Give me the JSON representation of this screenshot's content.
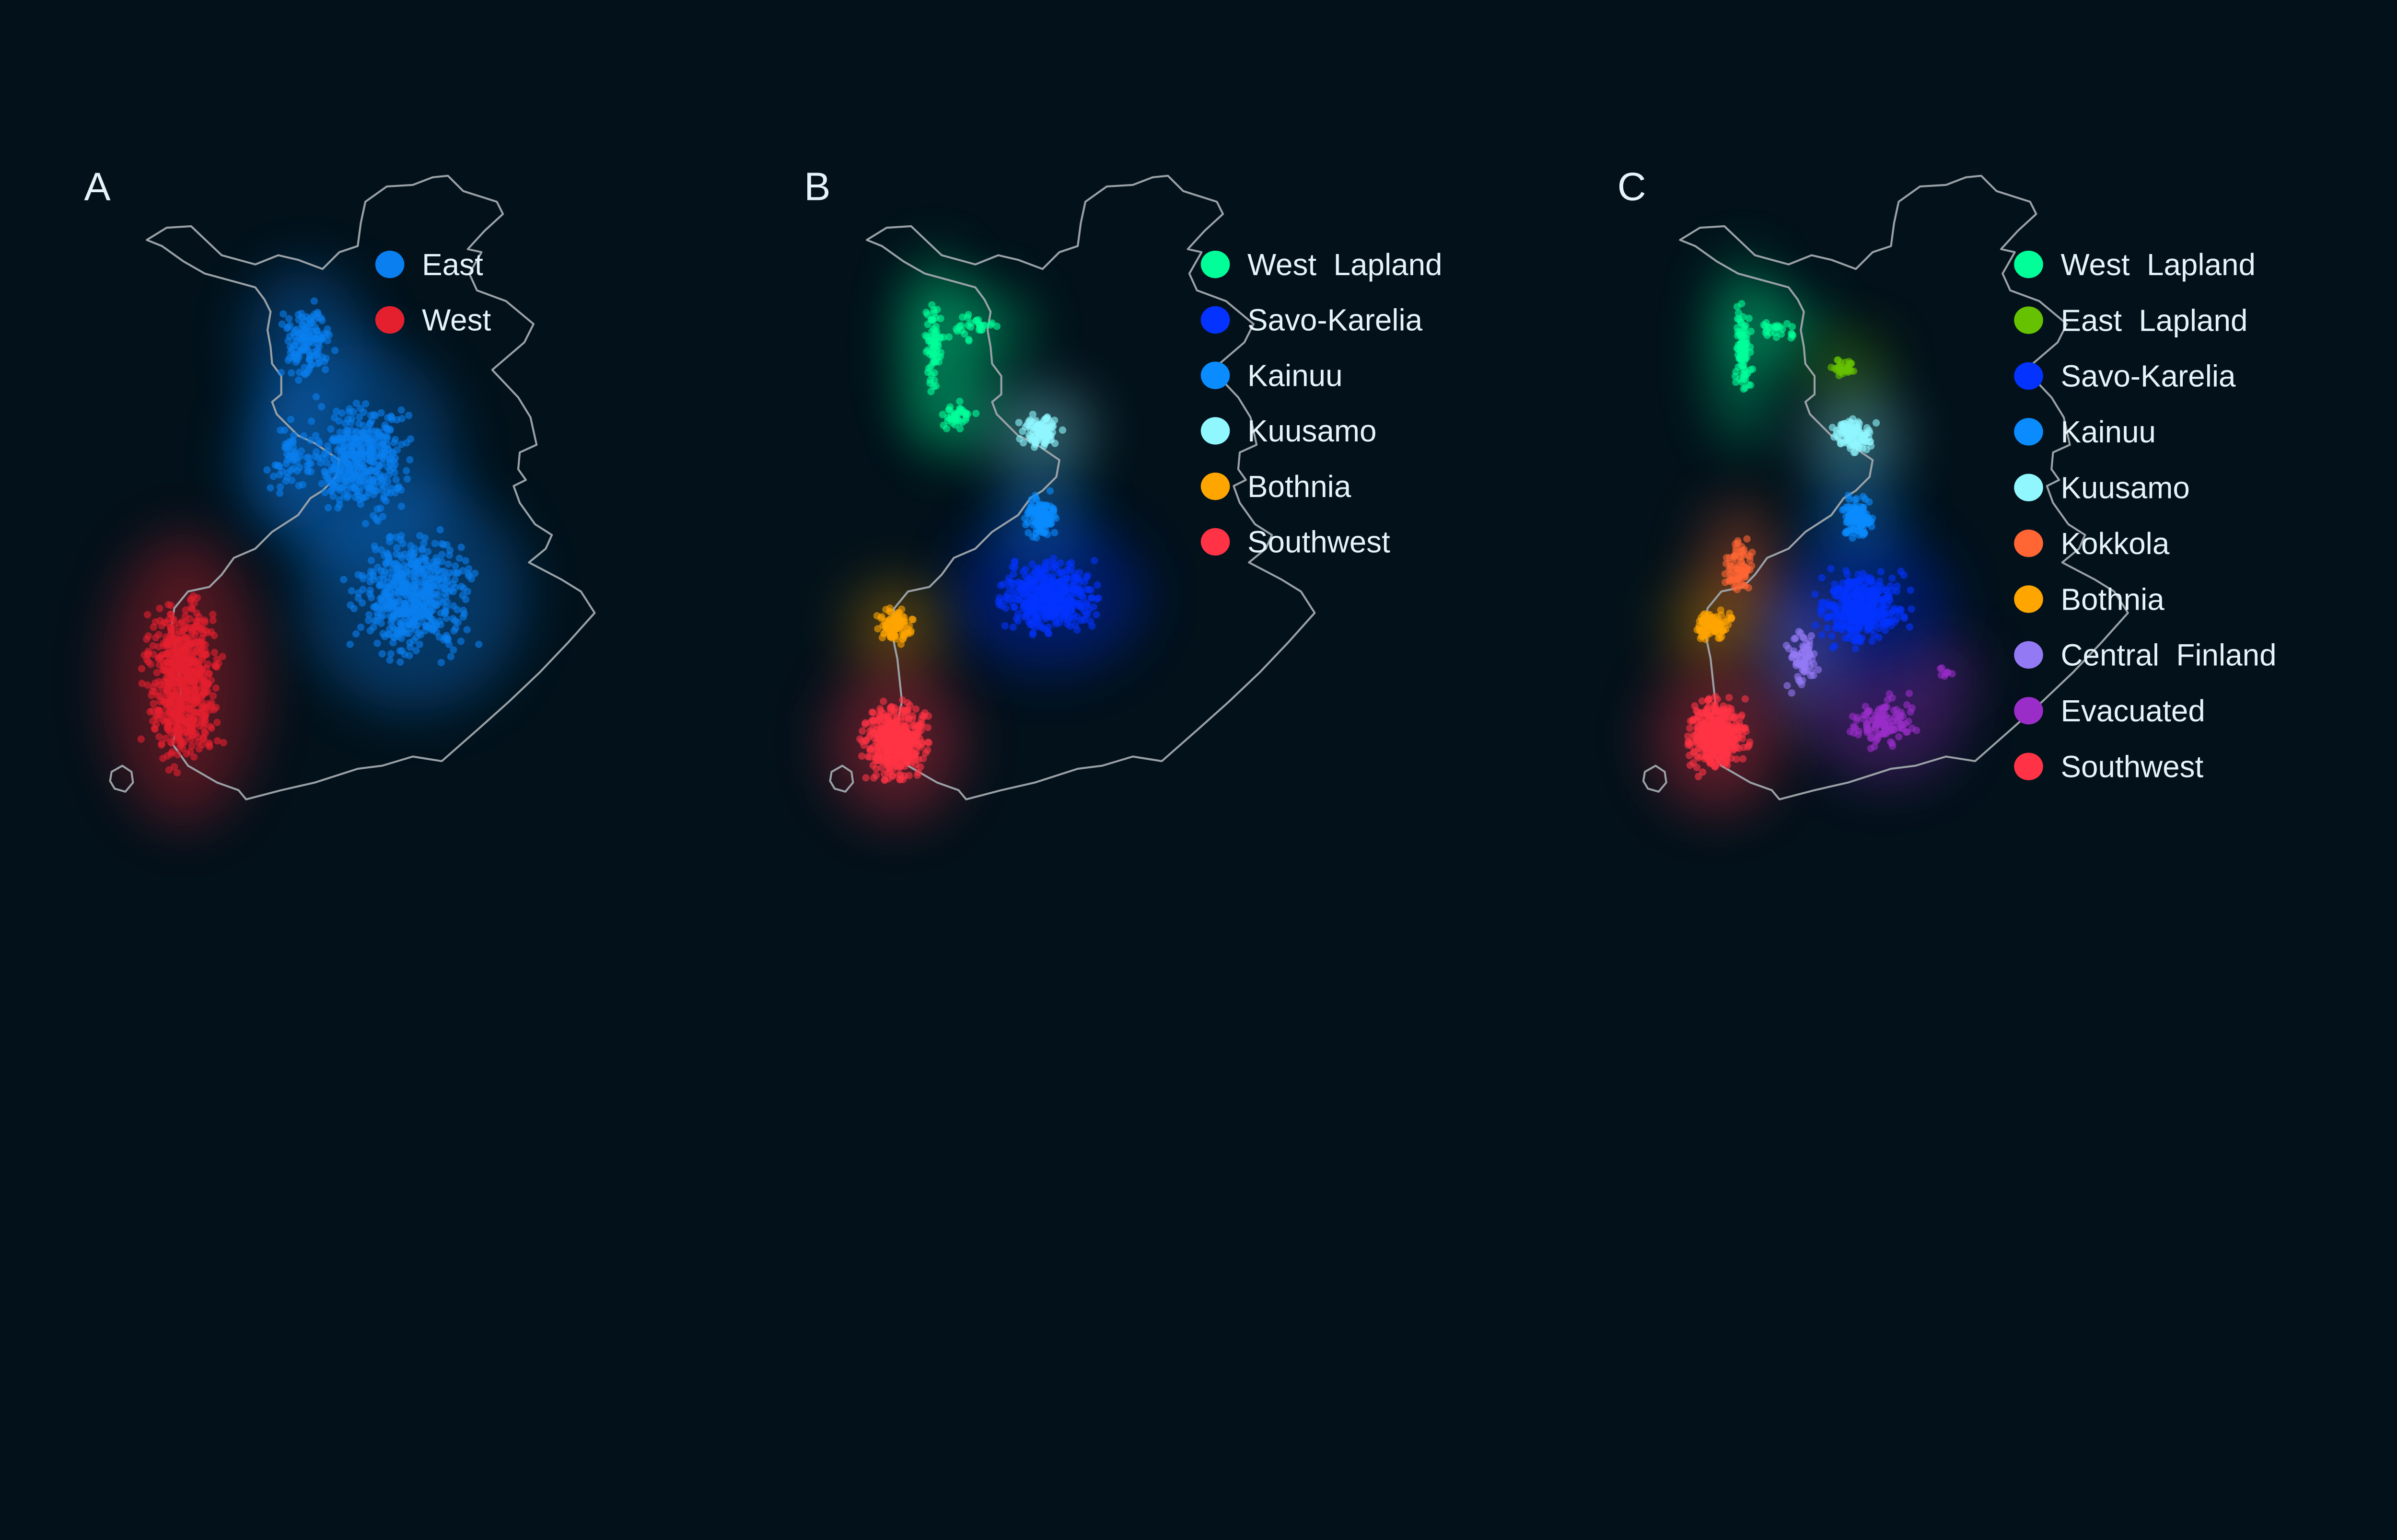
{
  "chart_data": [
    {
      "type": "scatter",
      "panel": "A",
      "title": "",
      "legend_position": "right",
      "series": [
        {
          "name": "East",
          "color": "#0a7fef"
        },
        {
          "name": "West",
          "color": "#e5202e"
        }
      ]
    },
    {
      "type": "scatter",
      "panel": "B",
      "title": "",
      "legend_position": "right",
      "series": [
        {
          "name": "West  Lapland",
          "color": "#00ff99"
        },
        {
          "name": "Savo-Karelia",
          "color": "#0433ff"
        },
        {
          "name": "Kainuu",
          "color": "#0a8cff"
        },
        {
          "name": "Kuusamo",
          "color": "#90f7ff"
        },
        {
          "name": "Bothnia",
          "color": "#ffa500"
        },
        {
          "name": "Southwest",
          "color": "#ff3345"
        }
      ]
    },
    {
      "type": "scatter",
      "panel": "C",
      "title": "",
      "legend_position": "right",
      "series": [
        {
          "name": "West  Lapland",
          "color": "#00ff99"
        },
        {
          "name": "East  Lapland",
          "color": "#66c200"
        },
        {
          "name": "Savo-Karelia",
          "color": "#0433ff"
        },
        {
          "name": "Kainuu",
          "color": "#0a8cff"
        },
        {
          "name": "Kuusamo",
          "color": "#90f7ff"
        },
        {
          "name": "Kokkola",
          "color": "#ff6633"
        },
        {
          "name": "Bothnia",
          "color": "#ffa500"
        },
        {
          "name": "Central  Finland",
          "color": "#9479f5"
        },
        {
          "name": "Evacuated",
          "color": "#9a2dc8"
        },
        {
          "name": "Southwest",
          "color": "#ff3345"
        }
      ]
    }
  ]
}
